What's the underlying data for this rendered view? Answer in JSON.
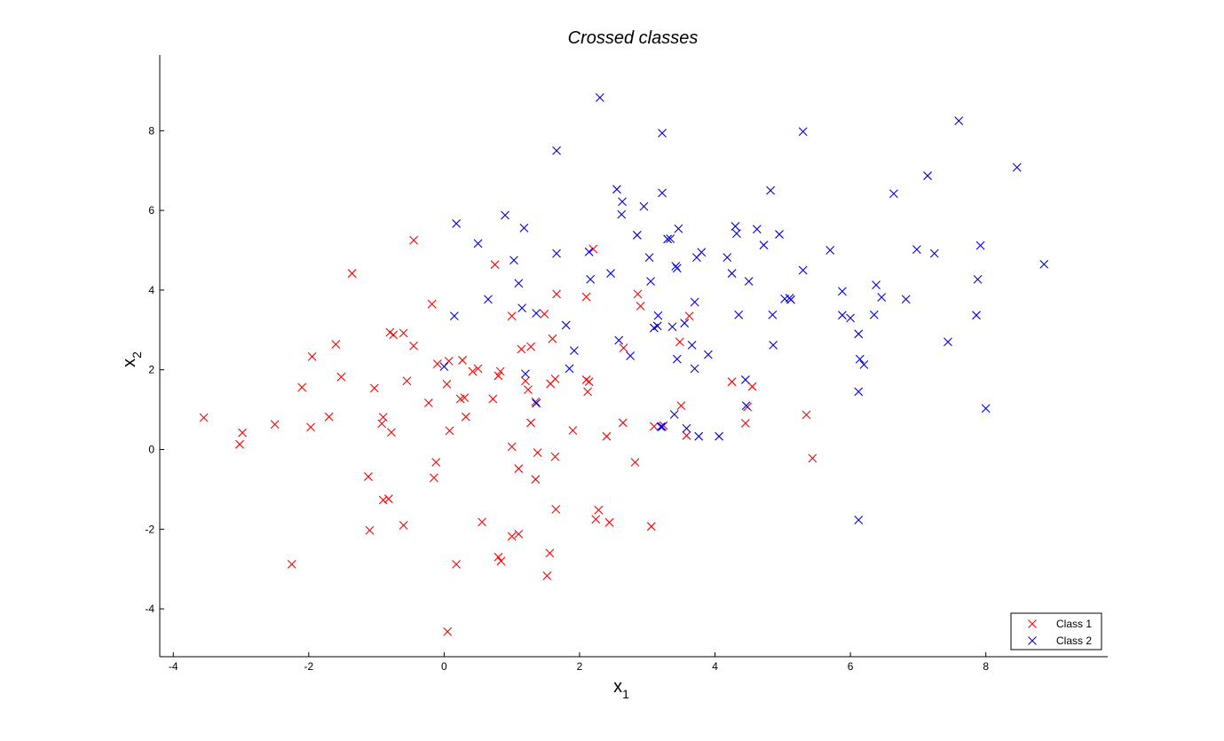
{
  "chart_data": {
    "type": "scatter",
    "title": "Crossed classes",
    "xlabel": "x",
    "xlabel_sub": "1",
    "ylabel": "x",
    "ylabel_sub": "2",
    "xlim": [
      -4.2,
      9.8
    ],
    "ylim": [
      -5.2,
      9.9
    ],
    "xticks": [
      -4,
      -2,
      0,
      2,
      4,
      6,
      8
    ],
    "yticks": [
      -4,
      -2,
      0,
      2,
      4,
      6,
      8
    ],
    "marker": "x",
    "grid": false,
    "legend_position": "bottom-right",
    "series": [
      {
        "name": "Class 1",
        "color": "#ff0000",
        "points": [
          [
            -3.55,
            0.8
          ],
          [
            -3.02,
            0.13
          ],
          [
            -2.98,
            0.42
          ],
          [
            -2.5,
            0.63
          ],
          [
            -2.25,
            -2.88
          ],
          [
            -2.1,
            1.56
          ],
          [
            -1.97,
            0.56
          ],
          [
            -1.95,
            2.33
          ],
          [
            -1.7,
            0.82
          ],
          [
            -1.6,
            2.64
          ],
          [
            -1.52,
            1.82
          ],
          [
            -1.36,
            4.42
          ],
          [
            -1.12,
            -0.68
          ],
          [
            -1.1,
            -2.03
          ],
          [
            -1.03,
            1.54
          ],
          [
            -0.92,
            0.65
          ],
          [
            -0.9,
            0.81
          ],
          [
            -0.9,
            -1.27
          ],
          [
            -0.82,
            -1.24
          ],
          [
            -0.8,
            2.94
          ],
          [
            -0.75,
            2.88
          ],
          [
            -0.78,
            0.43
          ],
          [
            -0.6,
            2.92
          ],
          [
            -0.55,
            1.72
          ],
          [
            -0.6,
            -1.9
          ],
          [
            -0.45,
            2.6
          ],
          [
            -0.45,
            5.25
          ],
          [
            -0.23,
            1.17
          ],
          [
            -0.18,
            3.65
          ],
          [
            -0.15,
            -0.71
          ],
          [
            -0.12,
            -0.32
          ],
          [
            -0.1,
            2.15
          ],
          [
            0.04,
            1.64
          ],
          [
            0.07,
            2.22
          ],
          [
            0.08,
            0.47
          ],
          [
            0.05,
            -4.57
          ],
          [
            0.18,
            -2.88
          ],
          [
            0.24,
            1.27
          ],
          [
            0.27,
            2.24
          ],
          [
            0.3,
            1.3
          ],
          [
            0.32,
            0.82
          ],
          [
            0.42,
            1.96
          ],
          [
            0.5,
            2.03
          ],
          [
            0.56,
            -1.82
          ],
          [
            0.72,
            1.27
          ],
          [
            0.75,
            4.64
          ],
          [
            0.8,
            1.85
          ],
          [
            0.83,
            1.96
          ],
          [
            0.8,
            -2.7
          ],
          [
            0.84,
            -2.8
          ],
          [
            1.0,
            0.07
          ],
          [
            1.0,
            3.35
          ],
          [
            1.0,
            -2.18
          ],
          [
            1.1,
            -2.12
          ],
          [
            1.1,
            -0.48
          ],
          [
            1.14,
            2.52
          ],
          [
            1.2,
            1.72
          ],
          [
            1.24,
            1.5
          ],
          [
            1.28,
            2.58
          ],
          [
            1.28,
            0.67
          ],
          [
            1.35,
            -0.75
          ],
          [
            1.38,
            -0.08
          ],
          [
            1.48,
            3.4
          ],
          [
            1.52,
            -3.17
          ],
          [
            1.56,
            -2.6
          ],
          [
            1.57,
            1.65
          ],
          [
            1.6,
            2.78
          ],
          [
            1.64,
            1.77
          ],
          [
            1.64,
            -0.18
          ],
          [
            1.65,
            -1.5
          ],
          [
            1.66,
            3.9
          ],
          [
            1.9,
            0.48
          ],
          [
            2.1,
            3.83
          ],
          [
            2.12,
            1.45
          ],
          [
            2.14,
            1.7
          ],
          [
            2.2,
            5.03
          ],
          [
            2.24,
            -1.75
          ],
          [
            2.28,
            -1.52
          ],
          [
            2.4,
            0.33
          ],
          [
            2.44,
            -1.83
          ],
          [
            2.64,
            0.67
          ],
          [
            2.65,
            2.55
          ],
          [
            2.82,
            -0.32
          ],
          [
            2.86,
            3.9
          ],
          [
            2.9,
            3.6
          ],
          [
            3.1,
            0.58
          ],
          [
            3.06,
            -1.93
          ],
          [
            3.24,
            0.6
          ],
          [
            3.5,
            1.1
          ],
          [
            3.48,
            2.7
          ],
          [
            3.58,
            0.35
          ],
          [
            3.62,
            3.35
          ],
          [
            4.25,
            1.7
          ],
          [
            4.45,
            0.66
          ],
          [
            4.48,
            1.07
          ],
          [
            4.55,
            1.58
          ],
          [
            5.35,
            0.87
          ],
          [
            5.44,
            -0.22
          ],
          [
            2.1,
            1.75
          ],
          [
            1.35,
            1.2
          ]
        ]
      },
      {
        "name": "Class 2",
        "color": "#0000dd",
        "points": [
          [
            0.0,
            2.08
          ],
          [
            0.18,
            5.67
          ],
          [
            0.15,
            3.35
          ],
          [
            0.5,
            5.17
          ],
          [
            0.65,
            3.77
          ],
          [
            0.9,
            5.88
          ],
          [
            1.03,
            4.75
          ],
          [
            1.1,
            4.17
          ],
          [
            1.15,
            3.55
          ],
          [
            1.18,
            5.56
          ],
          [
            1.2,
            1.9
          ],
          [
            1.36,
            1.16
          ],
          [
            1.36,
            3.42
          ],
          [
            1.66,
            7.5
          ],
          [
            1.66,
            4.92
          ],
          [
            1.8,
            3.12
          ],
          [
            1.85,
            2.03
          ],
          [
            1.92,
            2.48
          ],
          [
            2.14,
            4.96
          ],
          [
            2.16,
            4.27
          ],
          [
            2.3,
            8.83
          ],
          [
            2.46,
            4.42
          ],
          [
            2.55,
            6.53
          ],
          [
            2.58,
            2.74
          ],
          [
            2.63,
            6.22
          ],
          [
            2.62,
            5.9
          ],
          [
            2.75,
            2.35
          ],
          [
            2.85,
            5.38
          ],
          [
            2.95,
            6.1
          ],
          [
            3.03,
            4.82
          ],
          [
            3.05,
            4.22
          ],
          [
            3.1,
            3.05
          ],
          [
            3.16,
            3.36
          ],
          [
            3.2,
            0.57
          ],
          [
            3.22,
            0.57
          ],
          [
            3.22,
            7.94
          ],
          [
            3.22,
            6.44
          ],
          [
            3.3,
            5.28
          ],
          [
            3.34,
            5.29
          ],
          [
            3.37,
            3.08
          ],
          [
            3.4,
            0.88
          ],
          [
            3.42,
            4.6
          ],
          [
            3.44,
            4.55
          ],
          [
            3.44,
            2.27
          ],
          [
            3.46,
            5.54
          ],
          [
            3.55,
            3.17
          ],
          [
            3.58,
            0.53
          ],
          [
            3.66,
            2.62
          ],
          [
            3.7,
            3.7
          ],
          [
            3.7,
            2.03
          ],
          [
            3.73,
            4.82
          ],
          [
            3.76,
            0.33
          ],
          [
            3.8,
            4.95
          ],
          [
            3.9,
            2.38
          ],
          [
            4.06,
            0.33
          ],
          [
            4.18,
            4.82
          ],
          [
            4.25,
            4.42
          ],
          [
            4.3,
            5.6
          ],
          [
            4.32,
            5.42
          ],
          [
            4.35,
            3.38
          ],
          [
            4.45,
            1.75
          ],
          [
            4.46,
            1.1
          ],
          [
            4.5,
            4.22
          ],
          [
            4.62,
            5.53
          ],
          [
            4.72,
            5.13
          ],
          [
            4.82,
            6.5
          ],
          [
            4.85,
            3.38
          ],
          [
            4.86,
            2.62
          ],
          [
            4.95,
            5.4
          ],
          [
            5.03,
            3.78
          ],
          [
            5.12,
            3.76
          ],
          [
            5.3,
            7.98
          ],
          [
            5.3,
            4.5
          ],
          [
            5.7,
            5.0
          ],
          [
            5.88,
            3.97
          ],
          [
            5.88,
            3.37
          ],
          [
            6.0,
            3.3
          ],
          [
            6.12,
            2.9
          ],
          [
            6.14,
            2.27
          ],
          [
            6.12,
            1.45
          ],
          [
            6.12,
            -1.77
          ],
          [
            6.2,
            2.13
          ],
          [
            6.35,
            3.38
          ],
          [
            6.38,
            4.13
          ],
          [
            6.46,
            3.82
          ],
          [
            6.64,
            6.42
          ],
          [
            6.82,
            3.77
          ],
          [
            6.98,
            5.02
          ],
          [
            7.14,
            6.87
          ],
          [
            7.24,
            4.92
          ],
          [
            7.44,
            2.7
          ],
          [
            7.6,
            8.25
          ],
          [
            7.86,
            3.37
          ],
          [
            7.88,
            4.27
          ],
          [
            7.92,
            5.12
          ],
          [
            8.0,
            1.03
          ],
          [
            8.46,
            7.08
          ],
          [
            8.86,
            4.65
          ],
          [
            5.1,
            3.8
          ],
          [
            3.15,
            3.1
          ]
        ]
      }
    ]
  }
}
